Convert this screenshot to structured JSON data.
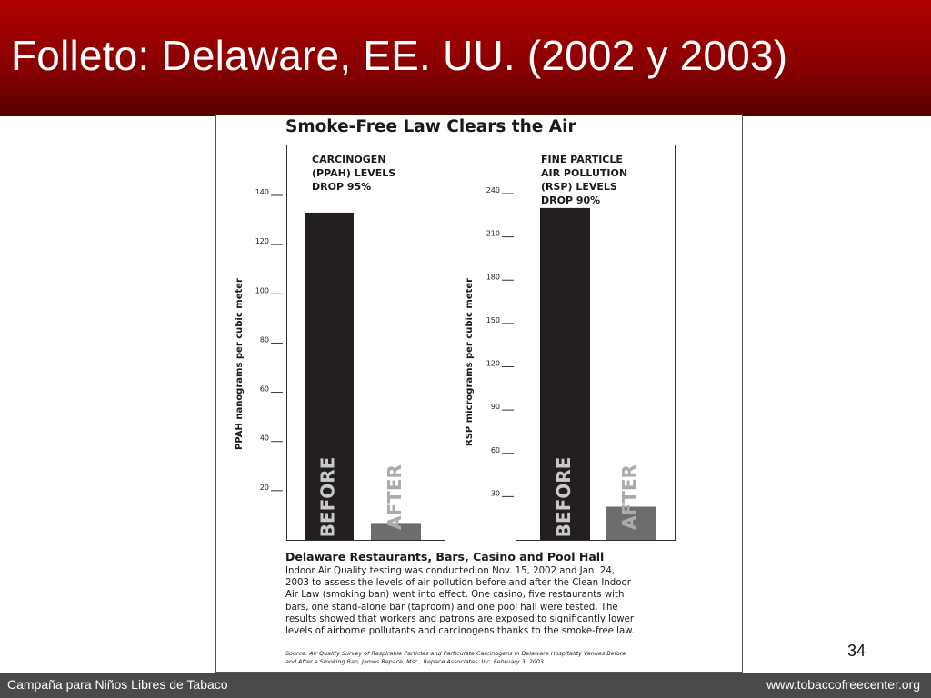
{
  "slide": {
    "title": "Folleto: Delaware, EE. UU. (2002 y 2003)",
    "page_number": "34",
    "footer_left": "Campaña para Niños Libres de Tabaco",
    "footer_right": "www.tobaccofreecenter.org"
  },
  "colors": {
    "title_bar": "#9a0000",
    "footer": "#4a4a4a",
    "before_bar": "#231f20",
    "after_bar": "#6d6d6d",
    "before_label": "#c9c9c9",
    "after_label": "#ababab"
  },
  "flyer": {
    "title": "Smoke-Free Law Clears the Air",
    "bottom_heading": "Delaware Restaurants, Bars, Casino and Pool Hall",
    "bottom_body_lines": [
      "Indoor Air Quality testing was conducted on Nov. 15, 2002 and Jan. 24,",
      "2003 to assess the levels of air pollution before and after the Clean Indoor",
      "Air Law (smoking ban) went into effect. One casino, five restaurants with",
      "bars, one stand-alone bar (taproom) and one pool hall were tested. The",
      "results showed that workers and patrons are exposed to significantly lower",
      "levels of airborne pollutants and carcinogens thanks to the smoke-free law."
    ],
    "source_lines": [
      "Source: Air Quality Survey of Respirable Particles and Particulate Carcinogens in Delaware Hospitality Venues Before",
      "and After a Smoking Ban, James Repace, Msc., Repace Associates, Inc. February 3, 2003"
    ]
  },
  "chart_data": [
    {
      "type": "bar",
      "heading_lines": [
        "CARCINOGEN",
        "(PPAH) LEVELS",
        "DROP 95%"
      ],
      "ylabel": "PPAH nanograms per cubic meter",
      "categories": [
        "BEFORE",
        "AFTER"
      ],
      "values": [
        133,
        6.5
      ],
      "yticks": [
        20,
        40,
        60,
        80,
        100,
        120,
        140
      ],
      "ylim": [
        0,
        140
      ],
      "grid": false,
      "legend": "none"
    },
    {
      "type": "bar",
      "heading_lines": [
        "FINE PARTICLE",
        "AIR POLLUTION",
        "(RSP) LEVELS",
        "DROP 90%"
      ],
      "ylabel": "RSP micrograms per cubic meter",
      "categories": [
        "BEFORE",
        "AFTER"
      ],
      "values": [
        230,
        23
      ],
      "yticks": [
        30,
        60,
        90,
        120,
        150,
        180,
        210,
        240
      ],
      "ylim": [
        0,
        240
      ],
      "grid": false,
      "legend": "none"
    }
  ]
}
